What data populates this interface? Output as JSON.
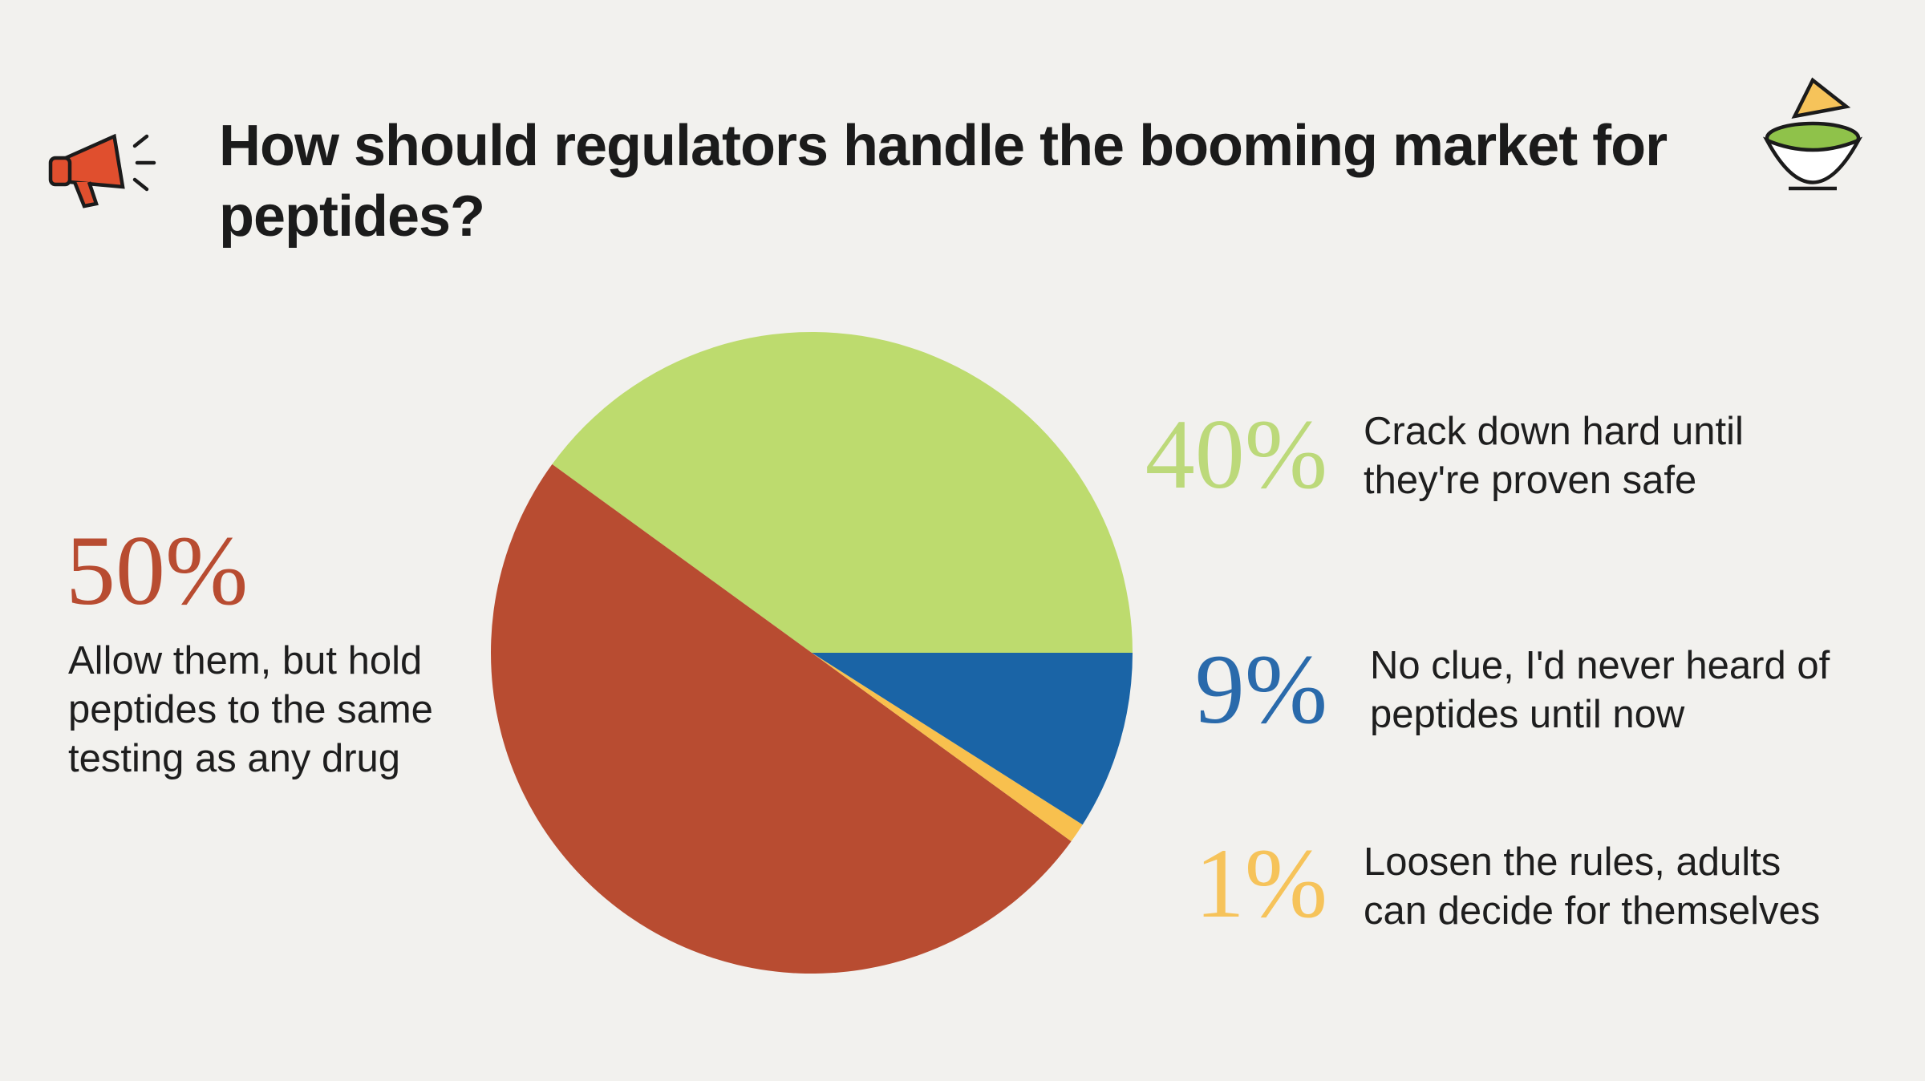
{
  "chart_data": {
    "type": "pie",
    "title": "How should regulators handle the booming market for peptides?",
    "categories": [
      "Crack down hard until they're proven safe",
      "Allow them, but hold peptides to the same testing as any drug",
      "Loosen the rules, adults can decide for themselves",
      "No clue, I'd never heard of peptides until now"
    ],
    "values": [
      40,
      50,
      1,
      9
    ],
    "value_labels": [
      "40%",
      "50%",
      "1%",
      "9%"
    ],
    "colors": [
      "#bddb6e",
      "#b84c31",
      "#f8c04e",
      "#1a64a6"
    ]
  }
}
